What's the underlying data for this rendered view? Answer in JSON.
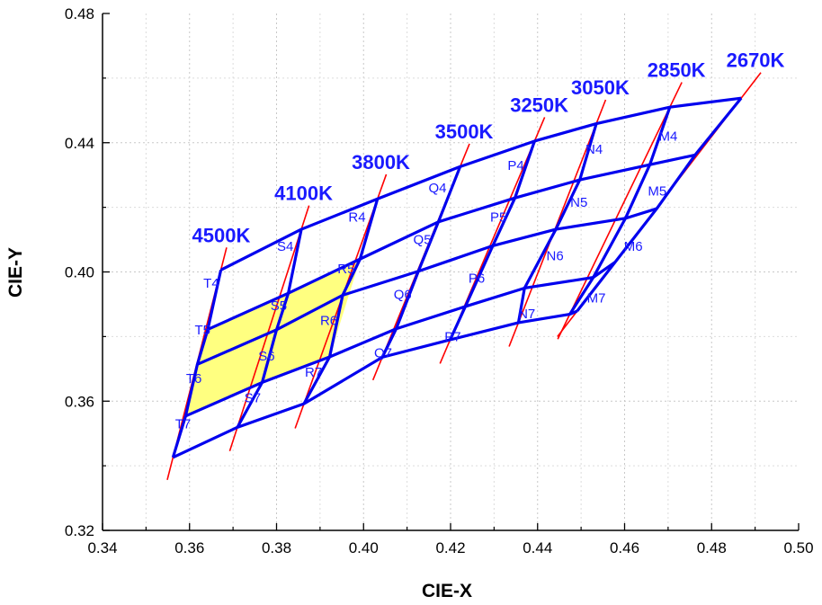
{
  "chart_data": {
    "type": "line",
    "xlabel": "CIE-X",
    "ylabel": "CIE-Y",
    "xlim": [
      0.34,
      0.5
    ],
    "ylim": [
      0.32,
      0.48
    ],
    "x_ticks": [
      "0.34",
      "0.36",
      "0.38",
      "0.40",
      "0.42",
      "0.44",
      "0.46",
      "0.48",
      "0.50"
    ],
    "y_ticks": [
      "0.32",
      "0.36",
      "0.40",
      "0.44",
      "0.48"
    ],
    "grid": true,
    "colors": {
      "grid_lines": "#0000ee",
      "cct_lines": "#ff0000",
      "labels": "#1a1aff",
      "highlight": "#ffff80"
    },
    "grid_nodes": {
      "4500K": [
        [
          0.3672,
          0.4006
        ],
        [
          0.3642,
          0.3822
        ],
        [
          0.3618,
          0.3714
        ],
        [
          0.3591,
          0.3554
        ],
        [
          0.3562,
          0.3426
        ]
      ],
      "4100K": [
        [
          0.3857,
          0.4132
        ],
        [
          0.3827,
          0.3934
        ],
        [
          0.38,
          0.3821
        ],
        [
          0.3767,
          0.3658
        ],
        [
          0.371,
          0.3519
        ]
      ],
      "3800K": [
        [
          0.4032,
          0.4226
        ],
        [
          0.3992,
          0.404
        ],
        [
          0.3952,
          0.3928
        ],
        [
          0.3922,
          0.3737
        ],
        [
          0.3863,
          0.3592
        ]
      ],
      "3500K": [
        [
          0.4222,
          0.4326
        ],
        [
          0.4172,
          0.4155
        ],
        [
          0.4126,
          0.4002
        ],
        [
          0.4075,
          0.3824
        ],
        [
          0.4043,
          0.3736
        ]
      ],
      "3250K": [
        [
          0.4393,
          0.4405
        ],
        [
          0.4348,
          0.4229
        ],
        [
          0.4297,
          0.4081
        ],
        [
          0.4234,
          0.3893
        ],
        [
          0.4199,
          0.379
        ]
      ],
      "3050K": [
        [
          0.4535,
          0.4459
        ],
        [
          0.4497,
          0.4285
        ],
        [
          0.4442,
          0.4132
        ],
        [
          0.437,
          0.395
        ],
        [
          0.4356,
          0.3843
        ]
      ],
      "2850K": [
        [
          0.4704,
          0.451
        ],
        [
          0.4658,
          0.4332
        ],
        [
          0.4602,
          0.4166
        ],
        [
          0.4528,
          0.3983
        ],
        [
          0.4474,
          0.3869
        ]
      ],
      "2670K": [
        [
          0.4868,
          0.4538
        ],
        [
          0.4762,
          0.4362
        ],
        [
          0.4674,
          0.4196
        ],
        [
          0.4578,
          0.403
        ],
        [
          0.4491,
          0.3879
        ]
      ]
    },
    "cct_labels": [
      "4500K",
      "4100K",
      "3800K",
      "3500K",
      "3250K",
      "3050K",
      "2850K",
      "2670K"
    ],
    "bins": [
      {
        "name": "T4",
        "x": 0.365,
        "y": 0.3965
      },
      {
        "name": "T5",
        "x": 0.363,
        "y": 0.382
      },
      {
        "name": "T6",
        "x": 0.361,
        "y": 0.367
      },
      {
        "name": "T7",
        "x": 0.3585,
        "y": 0.353
      },
      {
        "name": "S4",
        "x": 0.382,
        "y": 0.408
      },
      {
        "name": "S5",
        "x": 0.3805,
        "y": 0.3895
      },
      {
        "name": "S6",
        "x": 0.3777,
        "y": 0.374
      },
      {
        "name": "S7",
        "x": 0.3745,
        "y": 0.361
      },
      {
        "name": "R4",
        "x": 0.3985,
        "y": 0.417
      },
      {
        "name": "R5",
        "x": 0.396,
        "y": 0.401
      },
      {
        "name": "R6",
        "x": 0.392,
        "y": 0.385
      },
      {
        "name": "R7",
        "x": 0.3885,
        "y": 0.369
      },
      {
        "name": "Q4",
        "x": 0.417,
        "y": 0.426
      },
      {
        "name": "Q5",
        "x": 0.4135,
        "y": 0.41
      },
      {
        "name": "Q6",
        "x": 0.409,
        "y": 0.393
      },
      {
        "name": "Q7",
        "x": 0.4045,
        "y": 0.375
      },
      {
        "name": "P4",
        "x": 0.435,
        "y": 0.433
      },
      {
        "name": "P5",
        "x": 0.431,
        "y": 0.417
      },
      {
        "name": "P6",
        "x": 0.426,
        "y": 0.398
      },
      {
        "name": "P7",
        "x": 0.4205,
        "y": 0.38
      },
      {
        "name": "N4",
        "x": 0.453,
        "y": 0.438
      },
      {
        "name": "N5",
        "x": 0.4495,
        "y": 0.4215
      },
      {
        "name": "N6",
        "x": 0.444,
        "y": 0.405
      },
      {
        "name": "N7",
        "x": 0.4375,
        "y": 0.387
      },
      {
        "name": "M4",
        "x": 0.47,
        "y": 0.442
      },
      {
        "name": "M5",
        "x": 0.4675,
        "y": 0.425
      },
      {
        "name": "M6",
        "x": 0.462,
        "y": 0.408
      },
      {
        "name": "M7",
        "x": 0.4535,
        "y": 0.392
      }
    ],
    "highlighted_bins": [
      "T5",
      "T6",
      "S5",
      "S6"
    ]
  }
}
